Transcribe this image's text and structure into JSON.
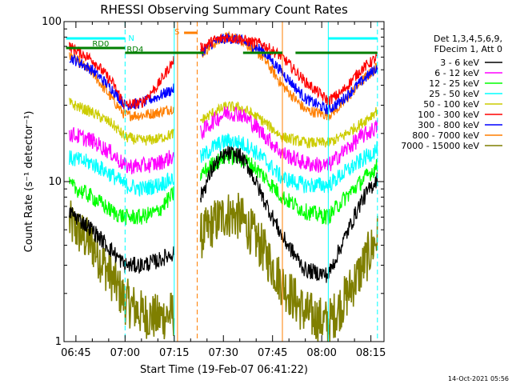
{
  "chart_data": {
    "type": "line",
    "title": "RHESSI Observing Summary Count Rates",
    "xlabel": "Start Time (19-Feb-07 06:41:22)",
    "ylabel": "Count Rate (s⁻¹ detector⁻¹)",
    "y_scale": "log",
    "ylim": [
      1,
      100
    ],
    "y_ticks": [
      {
        "value": 1,
        "label": "1"
      },
      {
        "value": 10,
        "label": "10"
      },
      {
        "value": 100,
        "label": "100"
      }
    ],
    "xlim": [
      "06:41:22",
      "08:19:00"
    ],
    "x_ticks": [
      "06:45",
      "07:00",
      "07:15",
      "07:30",
      "07:45",
      "08:00",
      "08:15"
    ],
    "grid": false,
    "legend_title": [
      "Det 1,3,4,5,6,9,",
      "FDecim 1, Att 0"
    ],
    "legend_placement": "right",
    "footer_date": "14-Oct-2021 05:56",
    "bars": [
      {
        "label": "N",
        "color": "#00ffff",
        "segments": [
          [
            "06:42",
            "07:00"
          ],
          [
            "08:02",
            "08:17"
          ]
        ]
      },
      {
        "label": "RD0",
        "color": "#007f00",
        "segments": [
          [
            "06:42",
            "07:00"
          ]
        ]
      },
      {
        "label": "RD4",
        "color": "#007f00",
        "segments": [
          [
            "07:00",
            "07:24"
          ],
          [
            "07:36",
            "07:48"
          ],
          [
            "07:52",
            "08:17"
          ]
        ]
      },
      {
        "label": "S",
        "color": "#ff7f00",
        "segments": [
          [
            "07:18",
            "07:22"
          ]
        ]
      }
    ],
    "markers": [
      {
        "time": "07:00",
        "color": "#00ffff",
        "style": "dashed"
      },
      {
        "time": "07:15",
        "color": "#00ffff",
        "style": "solid"
      },
      {
        "time": "07:16",
        "color": "#ff7f00",
        "style": "solid"
      },
      {
        "time": "07:22",
        "color": "#ff7f00",
        "style": "dashed"
      },
      {
        "time": "07:48",
        "color": "#ff7f00",
        "style": "solid"
      },
      {
        "time": "08:02",
        "color": "#00ffff",
        "style": "solid"
      },
      {
        "time": "08:17",
        "color": "#00ffff",
        "style": "dashed"
      }
    ],
    "x": [
      "06:43",
      "06:50",
      "06:56",
      "07:00",
      "07:05",
      "07:10",
      "07:15",
      "07:23",
      "07:27",
      "07:31",
      "07:35",
      "07:38",
      "07:42",
      "07:48",
      "07:55",
      "08:02",
      "08:06",
      "08:12",
      "08:17"
    ],
    "gaps_after_index": [
      6
    ],
    "series": [
      {
        "name": "3 - 6 keV",
        "color": "#000000",
        "values": [
          6.5,
          5.0,
          3.7,
          3.0,
          3.0,
          3.2,
          3.6,
          8.0,
          12.5,
          15.0,
          14.5,
          12.0,
          8.0,
          4.5,
          2.8,
          2.6,
          4.0,
          7.5,
          10.5
        ]
      },
      {
        "name": "6 - 12 keV",
        "color": "#ff00ff",
        "values": [
          20.0,
          18.0,
          15.0,
          12.5,
          12.5,
          13.0,
          14.5,
          20.0,
          24.0,
          27.0,
          26.5,
          24.0,
          20.0,
          15.0,
          13.0,
          12.5,
          15.0,
          19.0,
          22.0
        ]
      },
      {
        "name": "12 - 25 keV",
        "color": "#00ff00",
        "values": [
          9.5,
          8.0,
          6.5,
          6.0,
          6.0,
          6.5,
          8.5,
          11.0,
          13.0,
          14.5,
          14.0,
          13.0,
          11.0,
          8.0,
          6.5,
          6.0,
          7.5,
          10.0,
          12.5
        ]
      },
      {
        "name": "25 - 50 keV",
        "color": "#00ffff",
        "values": [
          14.0,
          13.0,
          11.0,
          9.5,
          9.0,
          9.5,
          10.5,
          14.0,
          16.5,
          18.0,
          17.5,
          16.5,
          14.0,
          10.5,
          9.5,
          9.5,
          11.0,
          13.5,
          16.0
        ]
      },
      {
        "name": "50 - 100 keV",
        "color": "#cccc00",
        "values": [
          31.0,
          27.0,
          23.0,
          19.0,
          18.0,
          18.5,
          20.0,
          24.0,
          27.0,
          29.5,
          29.0,
          27.0,
          24.0,
          19.0,
          17.5,
          17.5,
          19.0,
          23.0,
          28.0
        ]
      },
      {
        "name": "100 - 300 keV",
        "color": "#ff0000",
        "values": [
          70.0,
          58.0,
          42.0,
          30.0,
          31.0,
          40.0,
          58.0,
          68.0,
          76.0,
          80.0,
          78.0,
          75.0,
          72.0,
          60.0,
          42.0,
          32.0,
          36.0,
          50.0,
          60.0
        ]
      },
      {
        "name": "300 - 800 keV",
        "color": "#0000ff",
        "values": [
          60.0,
          50.0,
          38.0,
          30.0,
          31.0,
          34.0,
          38.0,
          64.0,
          74.0,
          79.0,
          77.0,
          72.0,
          66.0,
          48.0,
          33.0,
          28.0,
          32.0,
          42.0,
          52.0
        ]
      },
      {
        "name": "800 - 7000 keV",
        "color": "#ff7f00",
        "values": [
          62.0,
          48.0,
          33.0,
          26.0,
          26.0,
          27.0,
          29.0,
          62.0,
          73.0,
          80.0,
          78.0,
          70.0,
          60.0,
          40.0,
          28.0,
          26.0,
          30.0,
          42.0,
          52.0
        ]
      },
      {
        "name": "7000 - 15000 keV",
        "color": "#7f7f00",
        "values": [
          5.5,
          4.0,
          2.5,
          1.8,
          1.5,
          1.4,
          1.5,
          4.5,
          5.5,
          6.3,
          6.0,
          5.0,
          3.8,
          2.3,
          1.5,
          1.3,
          1.7,
          2.8,
          4.5
        ]
      }
    ]
  }
}
